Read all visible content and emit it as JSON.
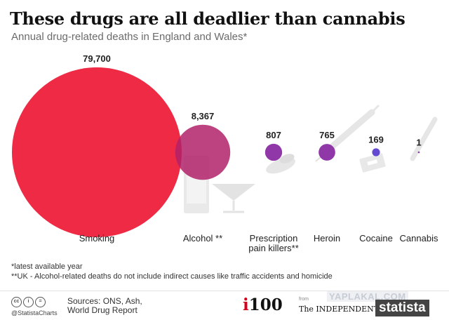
{
  "chart_data": {
    "type": "bubble",
    "title": "These drugs are all deadlier than cannabis",
    "subtitle": "Annual drug-related deaths in England and Wales*",
    "categories": [
      "Smoking",
      "Alcohol **",
      "Prescription pain killers**",
      "Heroin",
      "Cocaine",
      "Cannabis"
    ],
    "values": [
      79700,
      8367,
      807,
      765,
      169,
      1
    ],
    "value_labels": [
      "79,700",
      "8,367",
      "807",
      "765",
      "169",
      "1"
    ],
    "category_labels": [
      [
        "Smoking"
      ],
      [
        "Alcohol **"
      ],
      [
        "Prescription",
        "pain killers**"
      ],
      [
        "Heroin"
      ],
      [
        "Cocaine"
      ],
      [
        "Cannabis"
      ]
    ],
    "colors": [
      "#ee1f3a",
      "#b0216a",
      "#8a2da3",
      "#8a2da3",
      "#5b3fd0",
      "#8a2da3"
    ],
    "icon_names": [
      "cigarette-icon",
      "glasses-icon",
      "pill-bottle-icon",
      "syringe-icon",
      "razor-blade-icon",
      "joint-icon"
    ]
  },
  "footnotes": [
    "*latest available year",
    "**UK - Alcohol-related deaths do not include indirect causes like traffic accidents and homicide"
  ],
  "footer": {
    "handle": "@StatistaCharts",
    "sources": "Sources: ONS, Ash, World Drug Report",
    "i100": "100",
    "i100_prefix": "i",
    "from": "from",
    "independent": "The INDEPENDENT",
    "watermark": "YAPLAKAL.COM",
    "statista": "statista"
  }
}
